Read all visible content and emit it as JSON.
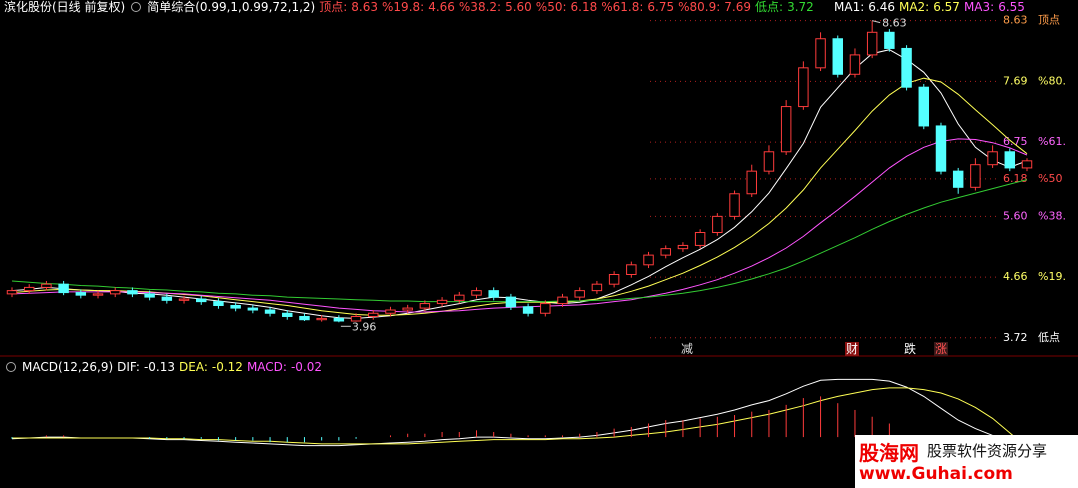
{
  "chart_data": [
    {
      "type": "candlestick",
      "title": "滨化股份(日线 前复权)",
      "indicator": "简单综合(0.99,1,0.99,72,1,2)",
      "up_color": "#ff3c3c",
      "down_color": "#54ffff",
      "ylim": [
        3.5,
        8.95
      ],
      "levels": [
        {
          "name": "顶点:",
          "value": 8.63,
          "axis_name": "顶点",
          "color": "#ff4a4a",
          "axis_color": "#ff9d4a"
        },
        {
          "name": "%19.8:",
          "value": 4.66,
          "axis_name": "%19.",
          "color": "#ff4a4a",
          "axis_color": "#ffff66"
        },
        {
          "name": "%38.2:",
          "value": {
            "value": 5.6,
            "label": "5.60"
          },
          "axis_name": "%38.",
          "color": "#ff4a4a",
          "axis_color": "#ff66ff"
        },
        {
          "name": "%50:",
          "value": 6.18,
          "axis_name": "%50",
          "color": "#ff4a4a",
          "axis_color": "#ff4a4a"
        },
        {
          "name": "%61.8:",
          "value": 6.75,
          "axis_name": "%61.",
          "color": "#ff4a4a",
          "axis_color": "#ff66ff"
        },
        {
          "name": "%80.9:",
          "value": 7.69,
          "axis_name": "%80.",
          "color": "#ff4a4a",
          "axis_color": "#ffff66"
        },
        {
          "name": "低点:",
          "value": 3.72,
          "axis_name": "低点",
          "color": "#33dd33",
          "axis_color": "#ffffff"
        }
      ],
      "open": [
        4.4,
        4.45,
        4.5,
        4.55,
        4.42,
        4.38,
        4.4,
        4.45,
        4.4,
        4.35,
        4.3,
        4.32,
        4.28,
        4.22,
        4.18,
        4.15,
        4.1,
        4.05,
        4.0,
        4.02,
        3.98,
        4.05,
        4.1,
        4.15,
        4.18,
        4.25,
        4.3,
        4.38,
        4.45,
        4.35,
        4.2,
        4.1,
        4.25,
        4.35,
        4.45,
        4.55,
        4.7,
        4.85,
        5.0,
        5.1,
        5.15,
        5.35,
        5.6,
        5.95,
        6.3,
        6.6,
        7.3,
        7.9,
        8.35,
        7.8,
        8.1,
        8.45,
        8.2,
        7.6,
        7.0,
        6.3,
        6.05,
        6.4,
        6.6,
        6.35
      ],
      "high": [
        4.5,
        4.55,
        4.6,
        4.6,
        4.47,
        4.45,
        4.5,
        4.5,
        4.45,
        4.4,
        4.37,
        4.37,
        4.33,
        4.27,
        4.23,
        4.2,
        4.15,
        4.1,
        4.07,
        4.07,
        4.1,
        4.15,
        4.2,
        4.23,
        4.3,
        4.35,
        4.43,
        4.5,
        4.5,
        4.4,
        4.25,
        4.3,
        4.4,
        4.5,
        4.6,
        4.75,
        4.9,
        5.05,
        5.15,
        5.2,
        5.4,
        5.65,
        6.0,
        6.4,
        6.7,
        7.4,
        8.0,
        8.45,
        8.4,
        8.2,
        8.63,
        8.5,
        8.25,
        7.65,
        7.05,
        6.35,
        6.5,
        6.7,
        6.65,
        6.5
      ],
      "low": [
        4.35,
        4.4,
        4.45,
        4.38,
        4.33,
        4.33,
        4.35,
        4.35,
        4.3,
        4.25,
        4.25,
        4.23,
        4.17,
        4.13,
        4.1,
        4.05,
        4.0,
        3.98,
        3.97,
        3.96,
        3.97,
        4.0,
        4.05,
        4.1,
        4.13,
        4.2,
        4.25,
        4.33,
        4.3,
        4.15,
        4.05,
        4.05,
        4.2,
        4.3,
        4.4,
        4.5,
        4.65,
        4.8,
        4.95,
        5.05,
        5.1,
        5.3,
        5.55,
        5.9,
        6.25,
        6.55,
        7.25,
        7.85,
        7.75,
        7.75,
        8.05,
        8.15,
        7.55,
        6.95,
        6.25,
        5.95,
        6.0,
        6.35,
        6.3,
        6.3
      ],
      "close": [
        4.45,
        4.5,
        4.55,
        4.42,
        4.38,
        4.4,
        4.45,
        4.4,
        4.35,
        4.3,
        4.32,
        4.28,
        4.22,
        4.18,
        4.15,
        4.1,
        4.05,
        4.0,
        4.02,
        3.98,
        4.05,
        4.1,
        4.15,
        4.18,
        4.25,
        4.3,
        4.38,
        4.45,
        4.35,
        4.2,
        4.1,
        4.25,
        4.35,
        4.45,
        4.55,
        4.7,
        4.85,
        5.0,
        5.1,
        5.15,
        5.35,
        5.6,
        5.95,
        6.3,
        6.6,
        7.3,
        7.9,
        8.35,
        7.8,
        8.1,
        8.45,
        8.2,
        7.6,
        7.0,
        6.3,
        6.05,
        6.4,
        6.6,
        6.35,
        6.46
      ],
      "series": [
        {
          "name": "MA1:",
          "color": "#ffffff",
          "values": [
            4.45,
            4.47,
            4.5,
            4.48,
            4.46,
            4.45,
            4.44,
            4.41,
            4.4,
            4.38,
            4.35,
            4.32,
            4.29,
            4.26,
            4.23,
            4.19,
            4.14,
            4.1,
            4.06,
            4.03,
            4.02,
            4.04,
            4.06,
            4.1,
            4.15,
            4.2,
            4.25,
            4.31,
            4.35,
            4.34,
            4.3,
            4.27,
            4.25,
            4.27,
            4.32,
            4.42,
            4.54,
            4.67,
            4.82,
            4.96,
            5.09,
            5.24,
            5.43,
            5.67,
            5.96,
            6.34,
            6.73,
            7.29,
            7.59,
            7.89,
            8.12,
            8.18,
            8.03,
            7.83,
            7.51,
            7.03,
            6.67,
            6.47,
            6.36,
            6.46
          ]
        },
        {
          "name": "MA2:",
          "color": "#ffff55",
          "values": [
            4.42,
            4.44,
            4.46,
            4.47,
            4.46,
            4.45,
            4.45,
            4.44,
            4.43,
            4.41,
            4.39,
            4.37,
            4.34,
            4.31,
            4.28,
            4.25,
            4.22,
            4.18,
            4.14,
            4.11,
            4.08,
            4.07,
            4.07,
            4.08,
            4.1,
            4.13,
            4.17,
            4.21,
            4.25,
            4.27,
            4.27,
            4.27,
            4.27,
            4.29,
            4.32,
            4.37,
            4.44,
            4.52,
            4.62,
            4.72,
            4.84,
            4.97,
            5.12,
            5.29,
            5.49,
            5.73,
            6.01,
            6.35,
            6.64,
            6.93,
            7.23,
            7.48,
            7.66,
            7.74,
            7.68,
            7.49,
            7.25,
            7.02,
            6.78,
            6.57
          ]
        },
        {
          "name": "MA3:",
          "color": "#ff55ff",
          "values": [
            4.4,
            4.41,
            4.42,
            4.43,
            4.43,
            4.43,
            4.43,
            4.43,
            4.42,
            4.41,
            4.4,
            4.38,
            4.36,
            4.34,
            4.32,
            4.3,
            4.27,
            4.24,
            4.21,
            4.18,
            4.16,
            4.14,
            4.13,
            4.12,
            4.12,
            4.13,
            4.14,
            4.16,
            4.18,
            4.19,
            4.2,
            4.21,
            4.22,
            4.23,
            4.25,
            4.28,
            4.31,
            4.36,
            4.41,
            4.47,
            4.54,
            4.62,
            4.72,
            4.83,
            4.96,
            5.11,
            5.29,
            5.5,
            5.7,
            5.91,
            6.13,
            6.35,
            6.53,
            6.67,
            6.76,
            6.8,
            6.79,
            6.74,
            6.66,
            6.55
          ]
        },
        {
          "color": "#33cc33",
          "values": [
            4.6,
            4.58,
            4.56,
            4.55,
            4.53,
            4.52,
            4.5,
            4.49,
            4.47,
            4.46,
            4.44,
            4.43,
            4.41,
            4.4,
            4.38,
            4.37,
            4.35,
            4.34,
            4.33,
            4.32,
            4.31,
            4.3,
            4.29,
            4.29,
            4.28,
            4.28,
            4.28,
            4.28,
            4.28,
            4.28,
            4.28,
            4.28,
            4.29,
            4.29,
            4.3,
            4.31,
            4.33,
            4.35,
            4.38,
            4.41,
            4.45,
            4.5,
            4.56,
            4.63,
            4.71,
            4.8,
            4.91,
            5.03,
            5.15,
            5.27,
            5.4,
            5.52,
            5.63,
            5.73,
            5.82,
            5.89,
            5.96,
            6.03,
            6.1,
            6.17
          ]
        }
      ],
      "events": [
        "减",
        "财",
        "跌",
        "涨"
      ]
    },
    {
      "type": "macd",
      "title": "MACD(12,26,9)",
      "ylim": [
        -0.6,
        0.85
      ],
      "up_color": "#ff3c3c",
      "down_color": "#54ffff",
      "series": [
        {
          "name": "DIF:",
          "color": "#ffffff",
          "values": [
            -0.02,
            -0.01,
            0.0,
            0.0,
            -0.01,
            -0.01,
            -0.01,
            -0.01,
            -0.02,
            -0.03,
            -0.03,
            -0.04,
            -0.05,
            -0.06,
            -0.07,
            -0.08,
            -0.09,
            -0.1,
            -0.1,
            -0.1,
            -0.09,
            -0.08,
            -0.07,
            -0.06,
            -0.05,
            -0.03,
            -0.02,
            0.0,
            0.0,
            -0.01,
            -0.02,
            -0.02,
            -0.01,
            0.0,
            0.02,
            0.05,
            0.08,
            0.12,
            0.16,
            0.19,
            0.23,
            0.27,
            0.32,
            0.38,
            0.43,
            0.51,
            0.6,
            0.67,
            0.68,
            0.68,
            0.68,
            0.66,
            0.59,
            0.48,
            0.34,
            0.2,
            0.1,
            0.02,
            -0.07,
            -0.13
          ]
        },
        {
          "name": "DEA:",
          "color": "#ffff55",
          "values": [
            -0.01,
            -0.01,
            -0.01,
            -0.01,
            -0.01,
            -0.01,
            -0.01,
            -0.01,
            -0.01,
            -0.02,
            -0.02,
            -0.03,
            -0.03,
            -0.04,
            -0.05,
            -0.05,
            -0.06,
            -0.07,
            -0.08,
            -0.08,
            -0.08,
            -0.08,
            -0.08,
            -0.08,
            -0.07,
            -0.06,
            -0.05,
            -0.04,
            -0.03,
            -0.03,
            -0.03,
            -0.03,
            -0.02,
            -0.02,
            -0.01,
            0.0,
            0.02,
            0.04,
            0.06,
            0.09,
            0.12,
            0.15,
            0.19,
            0.23,
            0.27,
            0.32,
            0.37,
            0.43,
            0.48,
            0.52,
            0.56,
            0.58,
            0.58,
            0.56,
            0.52,
            0.45,
            0.35,
            0.22,
            0.05,
            -0.12
          ]
        },
        {
          "name": "MACD:",
          "color": "#ff55ff",
          "kind": "bar",
          "values": [
            -0.02,
            0.0,
            0.02,
            0.02,
            0.0,
            0.0,
            0.0,
            0.0,
            -0.02,
            -0.02,
            -0.02,
            -0.02,
            -0.04,
            -0.04,
            -0.04,
            -0.06,
            -0.06,
            -0.06,
            -0.04,
            -0.04,
            -0.02,
            0.0,
            0.02,
            0.04,
            0.04,
            0.06,
            0.06,
            0.08,
            0.06,
            0.04,
            0.02,
            0.02,
            0.02,
            0.04,
            0.06,
            0.1,
            0.12,
            0.16,
            0.2,
            0.2,
            0.22,
            0.24,
            0.26,
            0.3,
            0.32,
            0.38,
            0.46,
            0.48,
            0.4,
            0.32,
            0.24,
            0.16,
            0.02,
            -0.16,
            -0.36,
            -0.5,
            -0.5,
            -0.4,
            -0.24,
            -0.02
          ]
        }
      ]
    }
  ],
  "watermark": {
    "brand": "股海网",
    "url": "www.Guhai.com",
    "slogan": "股票软件资源分享"
  }
}
